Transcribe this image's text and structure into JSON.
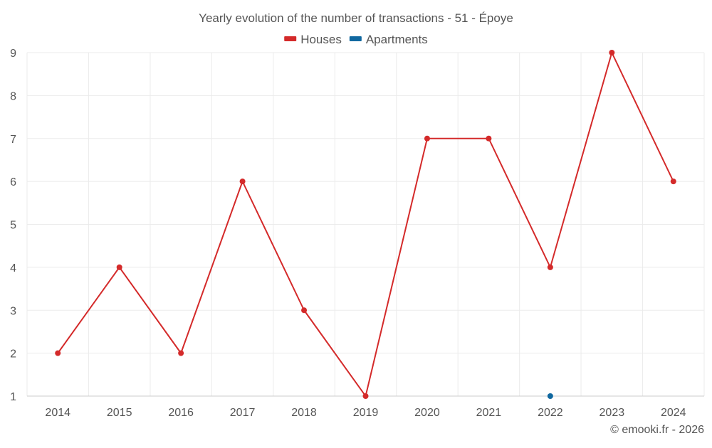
{
  "chart_data": {
    "type": "line",
    "title": "Yearly evolution of the number of transactions - 51 - Époye",
    "x": [
      "2014",
      "2015",
      "2016",
      "2017",
      "2018",
      "2019",
      "2020",
      "2021",
      "2022",
      "2023",
      "2024"
    ],
    "series": [
      {
        "name": "Houses",
        "color": "#d42a2a",
        "values": [
          2,
          4,
          2,
          6,
          3,
          1,
          7,
          7,
          4,
          9,
          6
        ]
      },
      {
        "name": "Apartments",
        "color": "#1068a0",
        "values": [
          null,
          null,
          null,
          null,
          null,
          null,
          null,
          null,
          1,
          null,
          null
        ]
      }
    ],
    "yticks": [
      1,
      2,
      3,
      4,
      5,
      6,
      7,
      8,
      9
    ],
    "ylim": [
      1,
      9
    ],
    "grid": true,
    "legend_position": "top-center",
    "credit": "© emooki.fr - 2026"
  }
}
